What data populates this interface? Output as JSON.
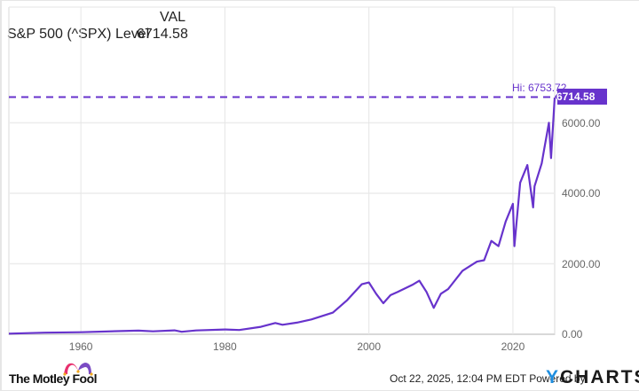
{
  "legend": {
    "header": "VAL",
    "series_name": "S&P 500 (^SPX) Level",
    "series_value": "6714.58"
  },
  "annotations": {
    "hi_label": "Hi: 6753.72",
    "last_value_badge": "6714.58"
  },
  "footer": {
    "brand": "The Motley Fool",
    "timestamp": "Oct 22, 2025, 12:04 PM EDT",
    "powered_by": "Powered by",
    "provider_y": "Y",
    "provider_rest": "CHARTS"
  },
  "colors": {
    "series": "#6733cc",
    "grid": "#e6e6e6",
    "axis_text": "#666666",
    "ycharts_blue": "#1f8fe0"
  },
  "chart_data": {
    "type": "line",
    "title": "S&P 500 (^SPX) Level",
    "xlabel": "",
    "ylabel": "",
    "x_tick_labels": [
      "1960",
      "1980",
      "2000",
      "2020"
    ],
    "y_tick_labels": [
      "0.00",
      "2000.00",
      "4000.00",
      "6000.00"
    ],
    "ylim": [
      0,
      8000
    ],
    "xlim": [
      1950,
      2025.8
    ],
    "grid": true,
    "legend_position": "top-left",
    "hi_line": {
      "label": "Hi: 6753.72",
      "value": 6753.72,
      "style": "dashed"
    },
    "last_value": 6714.58,
    "series": [
      {
        "name": "S&P 500 (^SPX) Level",
        "x": [
          1950,
          1955,
          1960,
          1965,
          1968,
          1970,
          1973,
          1974,
          1976,
          1980,
          1982,
          1985,
          1987,
          1988,
          1990,
          1992,
          1995,
          1997,
          1999,
          2000,
          2001,
          2002,
          2003,
          2004,
          2006,
          2007,
          2008,
          2009,
          2010,
          2011,
          2013,
          2015,
          2016,
          2017,
          2018,
          2019,
          2020,
          2020.2,
          2021,
          2022,
          2022.8,
          2023,
          2024,
          2024.3,
          2025,
          2025.3,
          2025.8
        ],
        "values": [
          17,
          45,
          58,
          88,
          103,
          84,
          110,
          70,
          107,
          136,
          120,
          211,
          320,
          270,
          330,
          420,
          615,
          970,
          1420,
          1470,
          1150,
          880,
          1110,
          1200,
          1400,
          1520,
          1200,
          750,
          1150,
          1280,
          1800,
          2060,
          2100,
          2650,
          2500,
          3200,
          3700,
          2500,
          4300,
          4800,
          3600,
          4200,
          4850,
          5200,
          6000,
          5000,
          6714.58
        ]
      }
    ]
  }
}
